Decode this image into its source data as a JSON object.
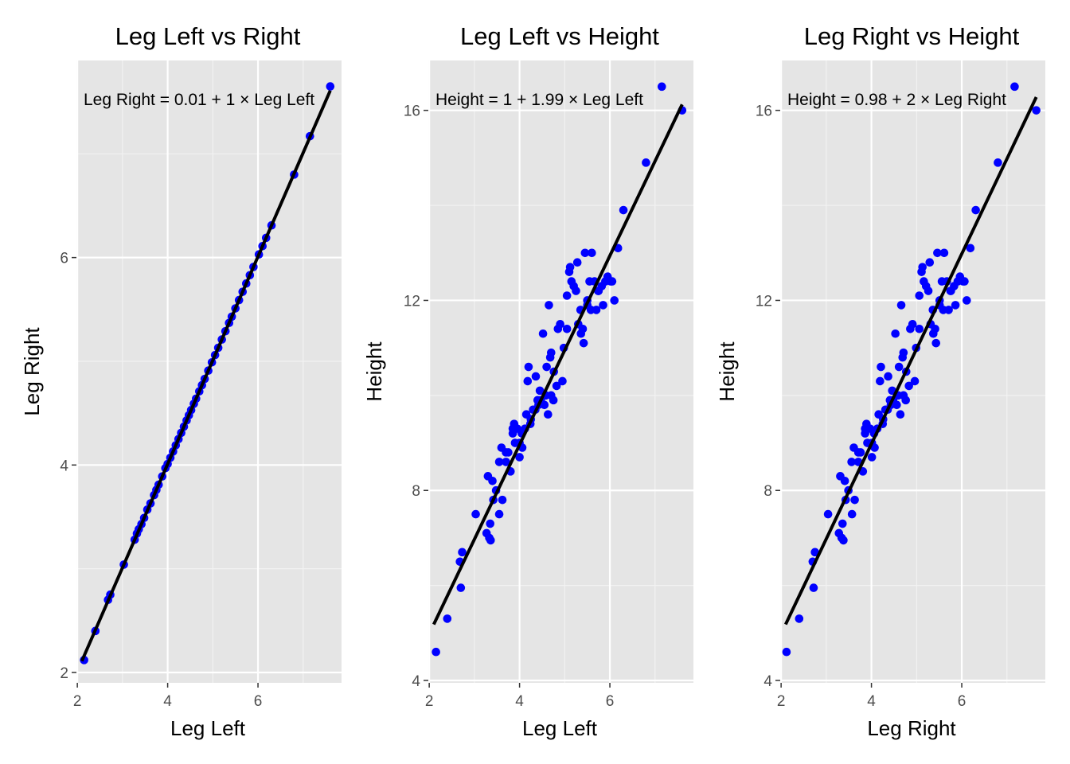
{
  "chart_data": [
    {
      "type": "scatter",
      "title": "Leg Left vs Right",
      "xlabel": "Leg Left",
      "ylabel": "Leg Right",
      "xlim": [
        1.98,
        7.85
      ],
      "ylim": [
        1.9,
        7.9
      ],
      "xticks": [
        2,
        4,
        6
      ],
      "xtick_labels": [
        "2",
        "4",
        "6"
      ],
      "yticks": [
        2,
        4,
        6
      ],
      "ytick_labels": [
        "2",
        "4",
        "6"
      ],
      "grid": true,
      "annotation": "Leg Right = 0.01 + 1 × Leg Left",
      "fit_line": {
        "intercept": 0.01,
        "slope": 1.0,
        "x_range": [
          2.1,
          7.6
        ]
      },
      "point_color": "#0000ff",
      "line_color": "#000000",
      "background_color": "#e5e5e5",
      "points": {
        "x": [
          2.15,
          2.4,
          2.68,
          2.73,
          3.03,
          3.27,
          3.32,
          3.36,
          3.42,
          3.48,
          3.55,
          3.62,
          3.7,
          3.75,
          3.8,
          3.88,
          3.95,
          4.0,
          4.06,
          4.12,
          4.18,
          4.24,
          4.3,
          4.36,
          4.42,
          4.47,
          4.52,
          4.58,
          4.63,
          4.7,
          4.76,
          4.82,
          4.9,
          4.98,
          5.05,
          5.12,
          5.2,
          5.28,
          5.36,
          5.42,
          5.5,
          5.58,
          5.66,
          5.74,
          5.82,
          5.9,
          6.02,
          6.1,
          6.18,
          6.3,
          6.8,
          7.15,
          7.6
        ],
        "y": [
          2.12,
          2.4,
          2.7,
          2.75,
          3.04,
          3.28,
          3.34,
          3.38,
          3.43,
          3.49,
          3.57,
          3.63,
          3.71,
          3.76,
          3.81,
          3.89,
          3.97,
          4.01,
          4.07,
          4.13,
          4.19,
          4.25,
          4.31,
          4.37,
          4.43,
          4.48,
          4.53,
          4.59,
          4.64,
          4.71,
          4.77,
          4.83,
          4.91,
          4.99,
          5.06,
          5.13,
          5.21,
          5.29,
          5.37,
          5.43,
          5.51,
          5.59,
          5.67,
          5.75,
          5.83,
          5.91,
          6.03,
          6.11,
          6.19,
          6.31,
          6.8,
          7.17,
          7.65
        ]
      }
    },
    {
      "type": "scatter",
      "title": "Leg Left vs Height",
      "xlabel": "Leg Left",
      "ylabel": "Height",
      "xlim": [
        1.98,
        7.85
      ],
      "ylim": [
        3.95,
        17.05
      ],
      "xticks": [
        2,
        4,
        6
      ],
      "xtick_labels": [
        "2",
        "4",
        "6"
      ],
      "yticks": [
        4,
        8,
        12,
        16
      ],
      "ytick_labels": [
        "4",
        "8",
        "12",
        "16"
      ],
      "grid": true,
      "annotation": "Height = 1 + 1.99 × Leg Left",
      "fit_line": {
        "intercept": 1.0,
        "slope": 1.99,
        "x_range": [
          2.1,
          7.6
        ]
      },
      "point_color": "#0000ff",
      "line_color": "#000000",
      "background_color": "#e5e5e5",
      "points": {
        "x": [
          2.15,
          2.4,
          2.68,
          2.7,
          2.73,
          3.03,
          3.27,
          3.3,
          3.33,
          3.36,
          3.42,
          3.48,
          3.55,
          3.55,
          3.62,
          3.7,
          3.75,
          3.8,
          3.85,
          3.88,
          3.95,
          4.0,
          4.06,
          4.12,
          4.18,
          4.2,
          4.24,
          4.3,
          4.36,
          4.42,
          4.47,
          4.52,
          4.58,
          4.63,
          4.65,
          4.7,
          4.76,
          4.82,
          4.9,
          4.98,
          5.05,
          5.12,
          5.2,
          5.28,
          5.36,
          5.42,
          5.5,
          5.58,
          5.66,
          5.74,
          5.82,
          5.9,
          6.02,
          6.1,
          6.18,
          6.3,
          6.8,
          7.15,
          7.6,
          3.9,
          4.05,
          4.25,
          4.45,
          4.6,
          4.75,
          4.95,
          5.1,
          5.3,
          5.45,
          5.55,
          5.7,
          5.85,
          3.4,
          3.6,
          3.85,
          4.15,
          4.35,
          4.55,
          4.7,
          4.85,
          5.05,
          5.25,
          5.4,
          5.6,
          5.75,
          6.05,
          3.35,
          3.7,
          4.0,
          4.4,
          4.68,
          5.15,
          5.35,
          5.5,
          5.95
        ],
        "y": [
          4.6,
          5.3,
          6.5,
          5.95,
          6.7,
          7.5,
          7.1,
          8.3,
          7.0,
          6.95,
          7.8,
          8.0,
          7.5,
          8.6,
          7.8,
          8.6,
          8.8,
          8.4,
          9.2,
          9.4,
          9.3,
          9.0,
          8.9,
          9.3,
          10.3,
          10.6,
          9.4,
          9.7,
          10.4,
          9.8,
          9.9,
          11.3,
          10.0,
          9.6,
          11.9,
          10.9,
          10.5,
          10.2,
          11.5,
          11.0,
          12.1,
          12.7,
          12.3,
          12.8,
          11.3,
          11.1,
          12.0,
          11.8,
          12.4,
          12.2,
          12.3,
          12.4,
          12.4,
          12.0,
          13.1,
          13.9,
          14.9,
          16.5,
          16.0,
          9.0,
          9.2,
          9.5,
          10.1,
          10.6,
          9.9,
          10.3,
          12.6,
          11.5,
          13.0,
          12.4,
          11.8,
          11.9,
          8.2,
          8.9,
          9.3,
          9.6,
          9.7,
          9.8,
          10.0,
          11.4,
          11.4,
          12.2,
          11.4,
          13.0,
          12.2,
          12.4,
          7.3,
          8.8,
          8.7,
          9.9,
          10.8,
          12.4,
          11.8,
          11.9,
          12.5
        ]
      }
    },
    {
      "type": "scatter",
      "title": "Leg Right vs Height",
      "xlabel": "Leg Right",
      "ylabel": "Height",
      "xlim": [
        1.98,
        7.85
      ],
      "ylim": [
        3.95,
        17.05
      ],
      "xticks": [
        2,
        4,
        6
      ],
      "xtick_labels": [
        "2",
        "4",
        "6"
      ],
      "yticks": [
        4,
        8,
        12,
        16
      ],
      "ytick_labels": [
        "4",
        "8",
        "12",
        "16"
      ],
      "grid": true,
      "annotation": "Height = 0.98 + 2 × Leg Right",
      "fit_line": {
        "intercept": 0.98,
        "slope": 2.0,
        "x_range": [
          2.1,
          7.65
        ]
      },
      "point_color": "#0000ff",
      "line_color": "#000000",
      "background_color": "#e5e5e5",
      "points": {
        "x": [
          2.12,
          2.4,
          2.7,
          2.72,
          2.75,
          3.04,
          3.28,
          3.31,
          3.34,
          3.38,
          3.43,
          3.49,
          3.57,
          3.56,
          3.63,
          3.71,
          3.76,
          3.81,
          3.86,
          3.89,
          3.97,
          4.01,
          4.07,
          4.13,
          4.19,
          4.21,
          4.25,
          4.31,
          4.37,
          4.43,
          4.48,
          4.53,
          4.59,
          4.64,
          4.66,
          4.71,
          4.77,
          4.83,
          4.91,
          4.99,
          5.06,
          5.13,
          5.21,
          5.29,
          5.37,
          5.43,
          5.51,
          5.59,
          5.67,
          5.75,
          5.83,
          5.91,
          6.03,
          6.11,
          6.19,
          6.31,
          6.8,
          7.17,
          7.65,
          3.91,
          4.06,
          4.26,
          4.46,
          4.61,
          4.76,
          4.96,
          5.11,
          5.31,
          5.46,
          5.56,
          5.71,
          5.86,
          3.41,
          3.61,
          3.86,
          4.16,
          4.36,
          4.56,
          4.71,
          4.86,
          5.06,
          5.26,
          5.41,
          5.61,
          5.76,
          6.06,
          3.36,
          3.71,
          4.01,
          4.41,
          4.69,
          5.16,
          5.36,
          5.51,
          5.96
        ],
        "y": [
          4.6,
          5.3,
          6.5,
          5.95,
          6.7,
          7.5,
          7.1,
          8.3,
          7.0,
          6.95,
          7.8,
          8.0,
          7.5,
          8.6,
          7.8,
          8.6,
          8.8,
          8.4,
          9.2,
          9.4,
          9.3,
          9.0,
          8.9,
          9.3,
          10.3,
          10.6,
          9.4,
          9.7,
          10.4,
          9.8,
          9.9,
          11.3,
          10.0,
          9.6,
          11.9,
          10.9,
          10.5,
          10.2,
          11.5,
          11.0,
          12.1,
          12.7,
          12.3,
          12.8,
          11.3,
          11.1,
          12.0,
          11.8,
          12.4,
          12.2,
          12.3,
          12.4,
          12.4,
          12.0,
          13.1,
          13.9,
          14.9,
          16.5,
          16.0,
          9.0,
          9.2,
          9.5,
          10.1,
          10.6,
          9.9,
          10.3,
          12.6,
          11.5,
          13.0,
          12.4,
          11.8,
          11.9,
          8.2,
          8.9,
          9.3,
          9.6,
          9.7,
          9.8,
          10.0,
          11.4,
          11.4,
          12.2,
          11.4,
          13.0,
          12.2,
          12.4,
          7.3,
          8.8,
          8.7,
          9.9,
          10.8,
          12.4,
          11.8,
          11.9,
          12.5
        ]
      }
    }
  ]
}
